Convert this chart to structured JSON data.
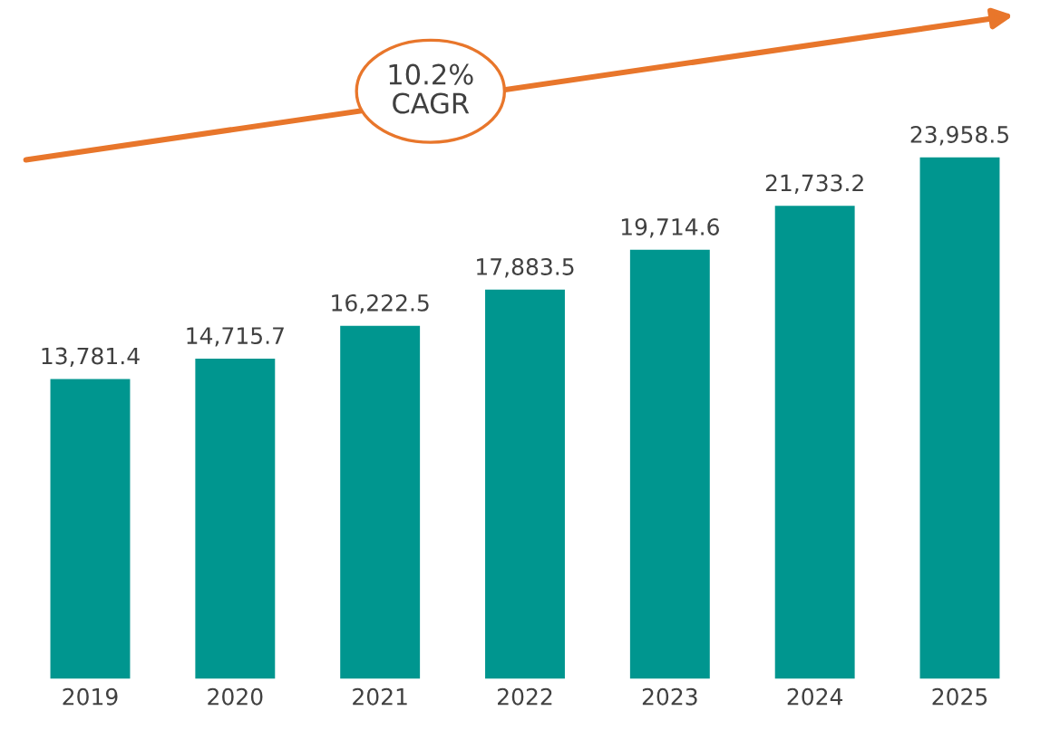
{
  "chart_data": {
    "type": "bar",
    "categories": [
      "2019",
      "2020",
      "2021",
      "2022",
      "2023",
      "2024",
      "2025"
    ],
    "values": [
      13781.4,
      14715.7,
      16222.5,
      17883.5,
      19714.6,
      21733.2,
      23958.5
    ],
    "value_labels": [
      "13,781.4",
      "14,715.7",
      "16,222.5",
      "17,883.5",
      "19,714.6",
      "21,733.2",
      "23,958.5"
    ],
    "color": "#00968f",
    "annotations": [
      "10.2%\nCAGR"
    ],
    "grid": false,
    "legend": false
  }
}
